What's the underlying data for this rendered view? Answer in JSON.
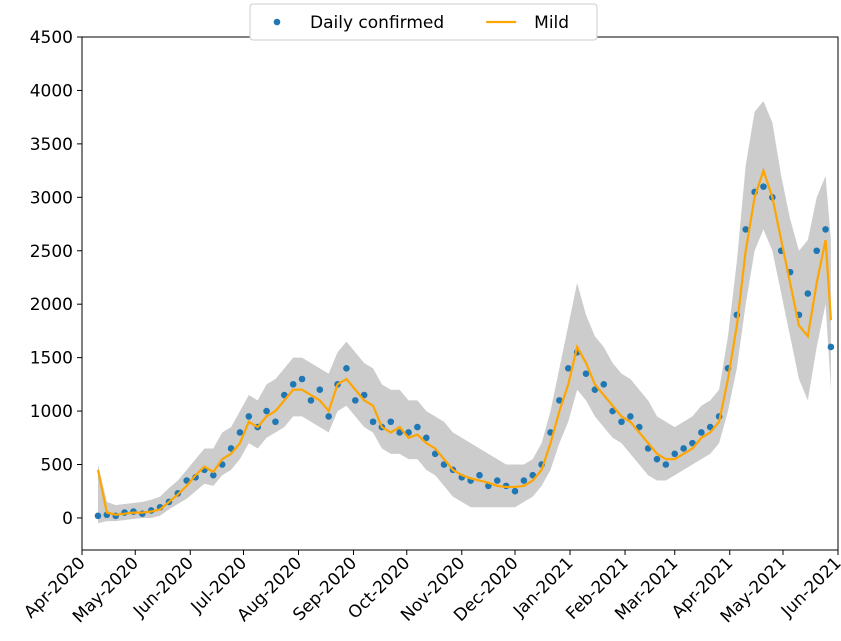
{
  "chart_data": {
    "type": "line",
    "x": [
      "2020-04-10",
      "2020-04-15",
      "2020-04-20",
      "2020-04-25",
      "2020-04-30",
      "2020-05-05",
      "2020-05-10",
      "2020-05-15",
      "2020-05-20",
      "2020-05-25",
      "2020-05-30",
      "2020-06-04",
      "2020-06-09",
      "2020-06-14",
      "2020-06-19",
      "2020-06-24",
      "2020-06-29",
      "2020-07-04",
      "2020-07-09",
      "2020-07-14",
      "2020-07-19",
      "2020-07-24",
      "2020-07-29",
      "2020-08-03",
      "2020-08-08",
      "2020-08-13",
      "2020-08-18",
      "2020-08-23",
      "2020-08-28",
      "2020-09-02",
      "2020-09-07",
      "2020-09-12",
      "2020-09-17",
      "2020-09-22",
      "2020-09-27",
      "2020-10-02",
      "2020-10-07",
      "2020-10-12",
      "2020-10-17",
      "2020-10-22",
      "2020-10-27",
      "2020-11-01",
      "2020-11-06",
      "2020-11-11",
      "2020-11-16",
      "2020-11-21",
      "2020-11-26",
      "2020-12-01",
      "2020-12-06",
      "2020-12-11",
      "2020-12-16",
      "2020-12-21",
      "2020-12-26",
      "2020-12-31",
      "2021-01-05",
      "2021-01-10",
      "2021-01-15",
      "2021-01-20",
      "2021-01-25",
      "2021-01-30",
      "2021-02-04",
      "2021-02-09",
      "2021-02-14",
      "2021-02-19",
      "2021-02-24",
      "2021-03-01",
      "2021-03-06",
      "2021-03-11",
      "2021-03-16",
      "2021-03-21",
      "2021-03-26",
      "2021-03-31",
      "2021-04-05",
      "2021-04-10",
      "2021-04-15",
      "2021-04-20",
      "2021-04-25",
      "2021-04-30",
      "2021-05-05",
      "2021-05-10",
      "2021-05-15",
      "2021-05-20",
      "2021-05-25",
      "2021-05-28"
    ],
    "series": [
      {
        "name": "Daily confirmed",
        "kind": "scatter",
        "color": "#1f77b4",
        "values": [
          20,
          30,
          20,
          50,
          60,
          40,
          70,
          100,
          150,
          230,
          350,
          380,
          450,
          400,
          500,
          650,
          800,
          950,
          850,
          1000,
          900,
          1150,
          1250,
          1300,
          1100,
          1200,
          950,
          1250,
          1400,
          1100,
          1150,
          900,
          850,
          900,
          800,
          800,
          850,
          750,
          600,
          500,
          450,
          380,
          350,
          400,
          300,
          350,
          300,
          250,
          350,
          400,
          500,
          800,
          1100,
          1400,
          1550,
          1350,
          1200,
          1250,
          1000,
          900,
          950,
          850,
          650,
          550,
          500,
          600,
          650,
          700,
          800,
          850,
          950,
          1400,
          1900,
          2700,
          3050,
          3100,
          3000,
          2500,
          2300,
          1900,
          2100,
          2500,
          2700,
          1600
        ]
      },
      {
        "name": "Mild",
        "kind": "line",
        "color": "#ffa500",
        "values": [
          450,
          50,
          30,
          40,
          50,
          50,
          60,
          80,
          150,
          220,
          300,
          400,
          480,
          430,
          550,
          600,
          700,
          900,
          850,
          950,
          1000,
          1100,
          1200,
          1200,
          1150,
          1100,
          1000,
          1250,
          1300,
          1200,
          1100,
          1050,
          850,
          800,
          850,
          750,
          780,
          700,
          650,
          550,
          450,
          400,
          370,
          350,
          330,
          300,
          290,
          290,
          300,
          350,
          450,
          700,
          1000,
          1250,
          1600,
          1450,
          1250,
          1150,
          1050,
          950,
          900,
          800,
          700,
          600,
          550,
          550,
          600,
          650,
          750,
          800,
          900,
          1300,
          1800,
          2500,
          3000,
          3250,
          3000,
          2600,
          2200,
          1800,
          1700,
          2200,
          2600,
          1850
        ]
      }
    ],
    "band": {
      "color": "#cccccc",
      "lower": [
        -50,
        -30,
        -30,
        -20,
        -10,
        0,
        0,
        20,
        80,
        130,
        180,
        250,
        320,
        300,
        400,
        450,
        550,
        700,
        650,
        750,
        800,
        850,
        950,
        950,
        900,
        850,
        800,
        1000,
        1050,
        950,
        850,
        800,
        650,
        600,
        600,
        550,
        550,
        450,
        400,
        300,
        200,
        150,
        100,
        100,
        100,
        100,
        100,
        100,
        150,
        200,
        300,
        450,
        700,
        900,
        1200,
        1100,
        950,
        850,
        750,
        700,
        600,
        500,
        400,
        350,
        350,
        400,
        450,
        500,
        550,
        600,
        700,
        1000,
        1400,
        2000,
        2500,
        2700,
        2500,
        2100,
        1700,
        1300,
        1100,
        1600,
        2000,
        1200
      ],
      "upper": [
        500,
        150,
        120,
        130,
        140,
        150,
        170,
        200,
        280,
        350,
        450,
        550,
        650,
        650,
        800,
        850,
        1000,
        1150,
        1100,
        1250,
        1300,
        1400,
        1500,
        1500,
        1450,
        1400,
        1350,
        1550,
        1650,
        1550,
        1450,
        1400,
        1250,
        1200,
        1200,
        1100,
        1100,
        1000,
        950,
        900,
        800,
        750,
        700,
        650,
        600,
        550,
        500,
        500,
        500,
        550,
        700,
        1000,
        1400,
        1800,
        2200,
        1900,
        1700,
        1600,
        1450,
        1350,
        1300,
        1200,
        1100,
        950,
        900,
        850,
        900,
        950,
        1050,
        1100,
        1200,
        1700,
        2400,
        3300,
        3800,
        3900,
        3700,
        3200,
        2800,
        2500,
        2600,
        3000,
        3200,
        2600
      ]
    },
    "xlim": [
      "2020-04",
      "2021-06"
    ],
    "xticks": [
      {
        "value": "2020-04",
        "label": "Apr-2020"
      },
      {
        "value": "2020-05",
        "label": "May-2020"
      },
      {
        "value": "2020-06",
        "label": "Jun-2020"
      },
      {
        "value": "2020-07",
        "label": "Jul-2020"
      },
      {
        "value": "2020-08",
        "label": "Aug-2020"
      },
      {
        "value": "2020-09",
        "label": "Sep-2020"
      },
      {
        "value": "2020-10",
        "label": "Oct-2020"
      },
      {
        "value": "2020-11",
        "label": "Nov-2020"
      },
      {
        "value": "2020-12",
        "label": "Dec-2020"
      },
      {
        "value": "2021-01",
        "label": "Jan-2021"
      },
      {
        "value": "2021-02",
        "label": "Feb-2021"
      },
      {
        "value": "2021-03",
        "label": "Mar-2021"
      },
      {
        "value": "2021-04",
        "label": "Apr-2021"
      },
      {
        "value": "2021-05",
        "label": "May-2021"
      },
      {
        "value": "2021-06",
        "label": "Jun-2021"
      }
    ],
    "ylim": [
      -300,
      4500
    ],
    "yticks": [
      0,
      500,
      1000,
      1500,
      2000,
      2500,
      3000,
      3500,
      4000,
      4500
    ],
    "legend": "top"
  }
}
